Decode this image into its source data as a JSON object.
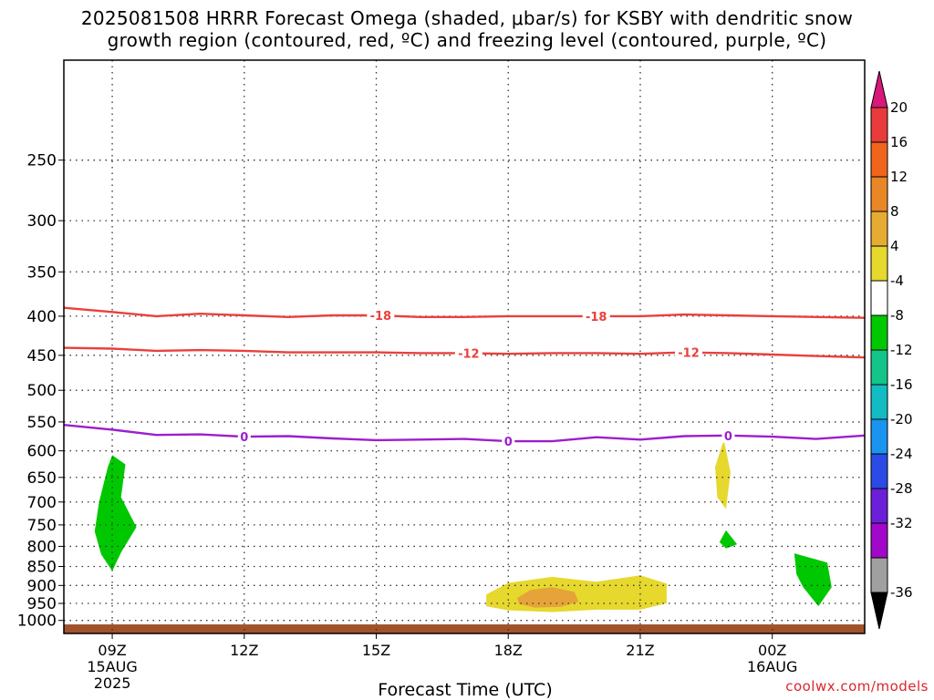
{
  "title": {
    "line1": "2025081508 HRRR Forecast Omega (shaded, μbar/s) for KSBY with dendritic snow",
    "line2": "growth region (contoured, red, ºC) and freezing level (contoured, purple, ºC)"
  },
  "credit": "coolwx.com/models",
  "chart_data": {
    "type": "time-height cross section",
    "xlabel": "Forecast Time (UTC)",
    "x_hours_range": [
      7.9,
      26.1
    ],
    "y_pressure_range_hPa": [
      1040,
      185
    ],
    "y_ticks": [
      250,
      300,
      350,
      400,
      450,
      500,
      550,
      600,
      650,
      700,
      750,
      800,
      850,
      900,
      950,
      1000
    ],
    "x_ticks": [
      {
        "hour": 9,
        "label": "09Z",
        "date": "15AUG",
        "year": "2025"
      },
      {
        "hour": 12,
        "label": "12Z"
      },
      {
        "hour": 15,
        "label": "15Z"
      },
      {
        "hour": 18,
        "label": "18Z"
      },
      {
        "hour": 21,
        "label": "21Z"
      },
      {
        "hour": 24,
        "label": "00Z",
        "date": "16AUG"
      }
    ],
    "ground": {
      "from_hPa": 1040,
      "to_hPa": 1012,
      "color": "#a0522d"
    },
    "contours": [
      {
        "name": "-18",
        "color": "#e8413c",
        "points": [
          [
            7.9,
            390
          ],
          [
            9,
            395
          ],
          [
            10,
            400
          ],
          [
            11,
            397
          ],
          [
            12,
            399
          ],
          [
            13,
            401
          ],
          [
            14,
            399
          ],
          [
            15,
            399
          ],
          [
            16,
            401
          ],
          [
            17,
            401
          ],
          [
            18,
            400
          ],
          [
            19,
            400
          ],
          [
            20,
            400
          ],
          [
            21,
            400
          ],
          [
            22,
            398
          ],
          [
            23,
            399
          ],
          [
            24,
            400
          ],
          [
            25,
            401
          ],
          [
            26.1,
            402
          ]
        ],
        "labels": [
          {
            "hour": 15.1,
            "text": "-18"
          },
          {
            "hour": 20.0,
            "text": "-18"
          }
        ]
      },
      {
        "name": "-12",
        "color": "#e8413c",
        "points": [
          [
            7.9,
            440
          ],
          [
            9,
            441
          ],
          [
            10,
            444
          ],
          [
            11,
            443
          ],
          [
            12,
            444
          ],
          [
            13,
            446
          ],
          [
            14,
            446
          ],
          [
            15,
            446
          ],
          [
            16,
            447
          ],
          [
            17,
            447
          ],
          [
            18,
            448
          ],
          [
            19,
            447
          ],
          [
            20,
            447
          ],
          [
            21,
            448
          ],
          [
            22,
            446
          ],
          [
            23,
            447
          ],
          [
            24,
            449
          ],
          [
            25,
            451
          ],
          [
            26.1,
            453
          ]
        ],
        "labels": [
          {
            "hour": 17.1,
            "text": "-12"
          },
          {
            "hour": 22.1,
            "text": "-12"
          }
        ]
      },
      {
        "name": "0",
        "color": "#9b1fce",
        "points": [
          [
            7.9,
            555
          ],
          [
            9,
            563
          ],
          [
            10,
            572
          ],
          [
            11,
            571
          ],
          [
            12,
            575
          ],
          [
            13,
            574
          ],
          [
            14,
            578
          ],
          [
            15,
            581
          ],
          [
            16,
            580
          ],
          [
            17,
            579
          ],
          [
            18,
            583
          ],
          [
            19,
            583
          ],
          [
            20,
            576
          ],
          [
            21,
            580
          ],
          [
            22,
            574
          ],
          [
            23,
            573
          ],
          [
            24,
            575
          ],
          [
            25,
            579
          ],
          [
            26.1,
            573
          ]
        ],
        "labels": [
          {
            "hour": 12.0,
            "text": "0"
          },
          {
            "hour": 18.0,
            "text": "0"
          },
          {
            "hour": 23.0,
            "text": "0"
          }
        ]
      }
    ],
    "shaded_regions": [
      {
        "color": "#00c800",
        "points": [
          [
            9.0,
            608
          ],
          [
            9.3,
            625
          ],
          [
            9.2,
            690
          ],
          [
            9.55,
            755
          ],
          [
            9.2,
            815
          ],
          [
            9.0,
            862
          ],
          [
            8.75,
            820
          ],
          [
            8.6,
            765
          ],
          [
            8.7,
            700
          ],
          [
            8.9,
            630
          ]
        ]
      },
      {
        "color": "#e6d82d",
        "points": [
          [
            22.9,
            580
          ],
          [
            23.05,
            640
          ],
          [
            22.95,
            715
          ],
          [
            22.75,
            690
          ],
          [
            22.7,
            630
          ]
        ]
      },
      {
        "color": "#00c800",
        "points": [
          [
            22.95,
            762
          ],
          [
            23.2,
            795
          ],
          [
            22.95,
            805
          ],
          [
            22.8,
            790
          ]
        ]
      },
      {
        "color": "#00c800",
        "points": [
          [
            24.5,
            817
          ],
          [
            25.25,
            840
          ],
          [
            25.35,
            905
          ],
          [
            25.05,
            958
          ],
          [
            24.7,
            905
          ],
          [
            24.55,
            870
          ]
        ]
      },
      {
        "color": "#e6d82d",
        "points": [
          [
            17.5,
            925
          ],
          [
            18.0,
            893
          ],
          [
            19.0,
            877
          ],
          [
            20.0,
            890
          ],
          [
            21.0,
            873
          ],
          [
            21.6,
            895
          ],
          [
            21.6,
            950
          ],
          [
            21.0,
            968
          ],
          [
            20.0,
            968
          ],
          [
            19.0,
            975
          ],
          [
            18.0,
            970
          ],
          [
            17.5,
            958
          ]
        ]
      },
      {
        "color": "#e6a33a",
        "points": [
          [
            18.2,
            935
          ],
          [
            18.5,
            912
          ],
          [
            19.0,
            905
          ],
          [
            19.5,
            918
          ],
          [
            19.6,
            945
          ],
          [
            19.2,
            960
          ],
          [
            18.6,
            962
          ],
          [
            18.25,
            952
          ]
        ]
      }
    ],
    "colorbar": {
      "labels": [
        "20",
        "16",
        "12",
        "8",
        "4",
        "-4",
        "-8",
        "-12",
        "-16",
        "-20",
        "-24",
        "-28",
        "-32",
        "-36"
      ],
      "top_arrow_color": "#d9177a",
      "bottom_arrow_color": "#000000",
      "colors": [
        "#e83b3b",
        "#f0651c",
        "#e98626",
        "#e6ab32",
        "#e6d82d",
        "#ffffff",
        "#00c800",
        "#13c58a",
        "#12bcc2",
        "#1a94ef",
        "#2a4be6",
        "#6b1fd9",
        "#a108c9",
        "#a0a0a0"
      ]
    }
  }
}
